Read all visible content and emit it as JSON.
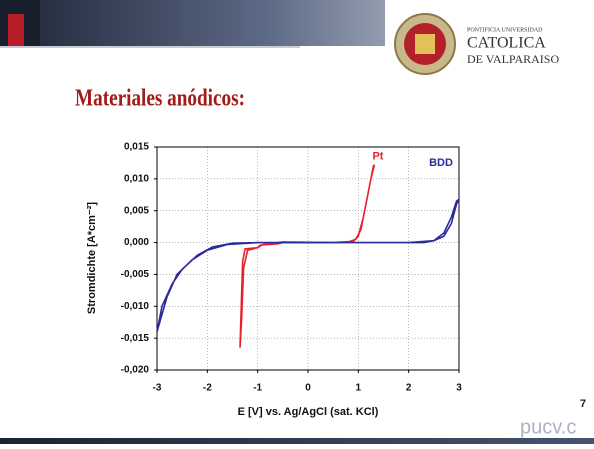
{
  "slide_title": "Materiales anódicos:",
  "logo": {
    "line1": "PONTIFICIA UNIVERSIDAD",
    "line2": "CATOLICA",
    "line3": "DE VALPARAISO"
  },
  "page_number": "7",
  "footer": "pucv.c",
  "chart_data": {
    "type": "line",
    "xlabel": "E [V] vs. Ag/AgCl (sat. KCl)",
    "ylabel": "Stromdichte [A*cm⁻²]",
    "xlim": [
      -3,
      3
    ],
    "xticks": [
      -3,
      -2,
      -1,
      0,
      1,
      2,
      3
    ],
    "ylim": [
      -0.02,
      0.015
    ],
    "yticks": [
      {
        "value": -0.02,
        "label": "-0,020"
      },
      {
        "value": -0.015,
        "label": "-0,015"
      },
      {
        "value": -0.01,
        "label": "-0,010"
      },
      {
        "value": -0.005,
        "label": "-0,005"
      },
      {
        "value": 0,
        "label": "0,000"
      },
      {
        "value": 0.005,
        "label": "0,005"
      },
      {
        "value": 0.01,
        "label": "0,010"
      },
      {
        "value": 0.015,
        "label": "0,015"
      }
    ],
    "grid": true,
    "series": [
      {
        "name": "Pt",
        "color": "#e8202a",
        "x": [
          -1.35,
          -1.32,
          -1.28,
          -1.2,
          -1.0,
          -0.95,
          -0.6,
          -0.5,
          0.5,
          0.8,
          0.95,
          1.05,
          1.15,
          1.25,
          1.32,
          1.3,
          1.2,
          1.1,
          1.0,
          0.9,
          0.5,
          -0.5,
          -0.9,
          -1.0,
          -1.25,
          -1.3,
          -1.35
        ],
        "values": [
          -0.0165,
          -0.012,
          -0.004,
          -0.0012,
          -0.0008,
          -0.0004,
          -0.0002,
          0,
          0,
          0.0001,
          0.0005,
          0.002,
          0.006,
          0.01,
          0.0122,
          0.012,
          0.008,
          0.004,
          0.001,
          0.0002,
          0,
          0.0001,
          -0.0003,
          -0.0008,
          -0.001,
          -0.003,
          -0.0165
        ]
      },
      {
        "name": "BDD",
        "color": "#2a2a9a",
        "x": [
          -3,
          -2.9,
          -2.7,
          -2.5,
          -2.2,
          -1.9,
          -1.5,
          -1,
          2.3,
          2.5,
          2.7,
          2.85,
          2.95,
          3,
          2.95,
          2.85,
          2.7,
          2.5,
          2.0,
          -1,
          -1.6,
          -2.0,
          -2.3,
          -2.6,
          -2.8,
          -3
        ],
        "values": [
          -0.014,
          -0.01,
          -0.0065,
          -0.0042,
          -0.002,
          -0.0007,
          -0.0001,
          0,
          0,
          0.0003,
          0.001,
          0.003,
          0.006,
          0.0068,
          0.0065,
          0.004,
          0.0015,
          0.0003,
          0,
          0,
          -0.0003,
          -0.0012,
          -0.0027,
          -0.005,
          -0.0085,
          -0.014
        ]
      }
    ]
  }
}
